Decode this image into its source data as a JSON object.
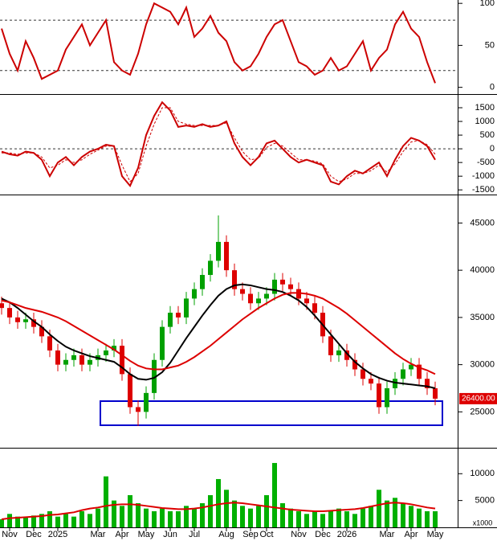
{
  "chart_data": [
    {
      "type": "line",
      "ylim": [
        -8,
        104
      ],
      "yticks": [
        0,
        50,
        100
      ],
      "reflines": [
        20,
        80
      ],
      "series": [
        {
          "color": "#cc0000",
          "values": [
            70,
            40,
            20,
            55,
            35,
            10,
            15,
            20,
            45,
            60,
            75,
            50,
            65,
            80,
            30,
            20,
            15,
            40,
            75,
            100,
            95,
            90,
            75,
            95,
            60,
            70,
            85,
            65,
            55,
            30,
            20,
            25,
            40,
            60,
            75,
            80,
            55,
            30,
            25,
            15,
            20,
            35,
            20,
            25,
            40,
            55,
            20,
            35,
            45,
            75,
            90,
            70,
            60,
            30,
            5
          ]
        }
      ]
    },
    {
      "type": "line",
      "ylim": [
        -1670,
        1970
      ],
      "yticks": [
        1500,
        1000,
        500,
        0,
        -500,
        -1000,
        -1500
      ],
      "reflines": [
        0
      ],
      "series": [
        {
          "color": "#cc0000",
          "values": [
            -100,
            -200,
            -250,
            -100,
            -150,
            -400,
            -1000,
            -500,
            -300,
            -600,
            -300,
            -100,
            0,
            150,
            100,
            -1000,
            -1350,
            -700,
            500,
            1200,
            1700,
            1400,
            800,
            850,
            800,
            900,
            800,
            850,
            1000,
            200,
            -300,
            -600,
            -300,
            200,
            300,
            0,
            -300,
            -500,
            -400,
            -500,
            -600,
            -1200,
            -1300,
            -1000,
            -800,
            -900,
            -700,
            -500,
            -1000,
            -400,
            100,
            400,
            300,
            100,
            -400
          ]
        },
        {
          "color": "#cc0000",
          "dashed": true,
          "values": [
            -150,
            -150,
            -200,
            -150,
            -150,
            -300,
            -700,
            -600,
            -400,
            -500,
            -400,
            -200,
            -50,
            100,
            100,
            -600,
            -1200,
            -900,
            100,
            900,
            1500,
            1500,
            1000,
            900,
            850,
            850,
            850,
            850,
            950,
            400,
            -100,
            -400,
            -350,
            50,
            200,
            100,
            -150,
            -400,
            -400,
            -450,
            -550,
            -1000,
            -1200,
            -1100,
            -900,
            -900,
            -800,
            -600,
            -850,
            -550,
            -100,
            250,
            300,
            150,
            -200
          ]
        }
      ]
    },
    {
      "type": "candlestick",
      "ylim": [
        21200,
        47930
      ],
      "yticks": [
        25000,
        30000,
        35000,
        40000,
        45000
      ],
      "up_color": "#00a000",
      "down_color": "#dd0000",
      "open": [
        36500,
        36000,
        35000,
        34500,
        34800,
        34000,
        33000,
        31500,
        30000,
        30500,
        31000,
        30000,
        30500,
        31000,
        31500,
        32000,
        29000,
        25500,
        25000,
        27000,
        30500,
        34000,
        35500,
        35000,
        37000,
        38000,
        39500,
        41000,
        43000,
        40000,
        38000,
        37500,
        36500,
        37000,
        37500,
        39000,
        38500,
        38000,
        37000,
        36500,
        35500,
        33000,
        31000,
        31500,
        30500,
        29500,
        28500,
        28000,
        25500,
        27500,
        28500,
        29500,
        30000,
        28500,
        27500
      ],
      "high": [
        37200,
        36700,
        35700,
        35500,
        35500,
        34700,
        33700,
        32200,
        31200,
        31700,
        31700,
        31200,
        31700,
        32200,
        32700,
        32700,
        29700,
        26200,
        27700,
        31200,
        34700,
        36200,
        36200,
        37700,
        38700,
        40200,
        41700,
        45800,
        43700,
        40700,
        38700,
        38200,
        37700,
        38200,
        39700,
        39700,
        39200,
        38700,
        37700,
        37200,
        36200,
        33700,
        32200,
        32200,
        31200,
        30200,
        29200,
        28700,
        28200,
        29200,
        30200,
        30700,
        30700,
        29200,
        28200
      ],
      "low": [
        35300,
        34300,
        33800,
        33800,
        33300,
        32300,
        30800,
        29300,
        29300,
        29800,
        29300,
        29300,
        29800,
        30300,
        30800,
        28300,
        24800,
        23500,
        24300,
        26300,
        29800,
        33300,
        34300,
        34300,
        36300,
        37300,
        38800,
        40300,
        39300,
        37300,
        36800,
        35800,
        35800,
        36300,
        36800,
        37800,
        37300,
        36300,
        35800,
        34800,
        32300,
        30300,
        30300,
        29800,
        28800,
        27800,
        27300,
        24800,
        24800,
        26800,
        27800,
        28800,
        27800,
        26800,
        25700
      ],
      "close": [
        36000,
        35000,
        34500,
        34800,
        34000,
        33000,
        31500,
        30000,
        30500,
        31000,
        30000,
        30500,
        31000,
        31500,
        32000,
        29000,
        25500,
        25000,
        27000,
        30500,
        34000,
        35500,
        35000,
        37000,
        38000,
        39500,
        41000,
        43000,
        40000,
        38000,
        37500,
        36500,
        37000,
        37500,
        39000,
        38500,
        38000,
        37000,
        36500,
        35500,
        33000,
        31000,
        31500,
        30500,
        29500,
        28500,
        28000,
        25500,
        27500,
        28500,
        29500,
        30000,
        28500,
        27500,
        26400
      ],
      "last_price": {
        "value": 26400,
        "label": "26400.00"
      },
      "series": [
        {
          "color": "#000000",
          "values": [
            37000,
            36600,
            36000,
            35300,
            34600,
            34000,
            33200,
            32500,
            31900,
            31500,
            31200,
            30900,
            30700,
            30500,
            30300,
            29700,
            29000,
            28500,
            28400,
            28600,
            29200,
            30200,
            31500,
            32800,
            34000,
            35200,
            36300,
            37300,
            38000,
            38400,
            38500,
            38400,
            38200,
            38000,
            37900,
            37700,
            37300,
            36800,
            36100,
            35200,
            34200,
            33200,
            32200,
            31200,
            30300,
            29600,
            29000,
            28600,
            28300,
            28100,
            28000,
            27900,
            27800,
            27700,
            27500
          ]
        },
        {
          "color": "#dd0000",
          "values": [
            36800,
            36600,
            36300,
            36000,
            35800,
            35600,
            35300,
            35000,
            34600,
            34100,
            33600,
            33100,
            32600,
            32100,
            31600,
            31000,
            30400,
            29900,
            29600,
            29500,
            29500,
            29700,
            29900,
            30300,
            30800,
            31400,
            32000,
            32700,
            33400,
            34100,
            34800,
            35400,
            36000,
            36500,
            37000,
            37400,
            37600,
            37600,
            37500,
            37300,
            37000,
            36500,
            36000,
            35400,
            34700,
            34000,
            33300,
            32600,
            31900,
            31200,
            30600,
            30100,
            29700,
            29400,
            29000
          ]
        }
      ]
    },
    {
      "type": "bar",
      "ylim": [
        0,
        14690
      ],
      "yticks": [
        5000,
        10000
      ],
      "unit": "x1000",
      "color": "#00b000",
      "categories": [
        null,
        "Nov",
        null,
        null,
        "Dec",
        null,
        null,
        "2025",
        null,
        null,
        null,
        null,
        "Mar",
        null,
        null,
        "Apr",
        null,
        null,
        "May",
        null,
        null,
        "Jun",
        null,
        null,
        "Jul",
        null,
        null,
        null,
        "Aug",
        null,
        null,
        "Sep",
        null,
        "Oct",
        null,
        null,
        null,
        "Nov",
        null,
        null,
        "Dec",
        null,
        null,
        "2026",
        null,
        null,
        null,
        null,
        "Mar",
        null,
        null,
        "Apr",
        null,
        null,
        "May"
      ],
      "values": [
        1500,
        2500,
        2000,
        1800,
        2200,
        2500,
        3000,
        2000,
        2500,
        2000,
        3000,
        2500,
        3500,
        9500,
        5000,
        4000,
        6000,
        4500,
        3500,
        3000,
        3500,
        3000,
        3000,
        4000,
        3500,
        4500,
        6000,
        9000,
        7000,
        5000,
        4000,
        3500,
        4000,
        6000,
        12000,
        4500,
        3500,
        3000,
        2500,
        3000,
        2500,
        3000,
        3500,
        3000,
        2500,
        3500,
        4000,
        7000,
        5000,
        5500,
        4500,
        4000,
        3500,
        3000,
        3000
      ],
      "series": [
        {
          "color": "#dd0000",
          "values": [
            1500,
            1700,
            1800,
            1900,
            2000,
            2100,
            2300,
            2400,
            2600,
            2800,
            3200,
            3500,
            3700,
            4000,
            4200,
            4300,
            4300,
            4200,
            4000,
            3800,
            3600,
            3500,
            3400,
            3400,
            3500,
            3700,
            4000,
            4300,
            4500,
            4600,
            4500,
            4300,
            4100,
            3900,
            3700,
            3500,
            3300,
            3200,
            3100,
            3000,
            3000,
            3100,
            3200,
            3300,
            3400,
            3600,
            3900,
            4200,
            4500,
            4600,
            4500,
            4300,
            4000,
            3700,
            3500
          ]
        }
      ]
    }
  ]
}
